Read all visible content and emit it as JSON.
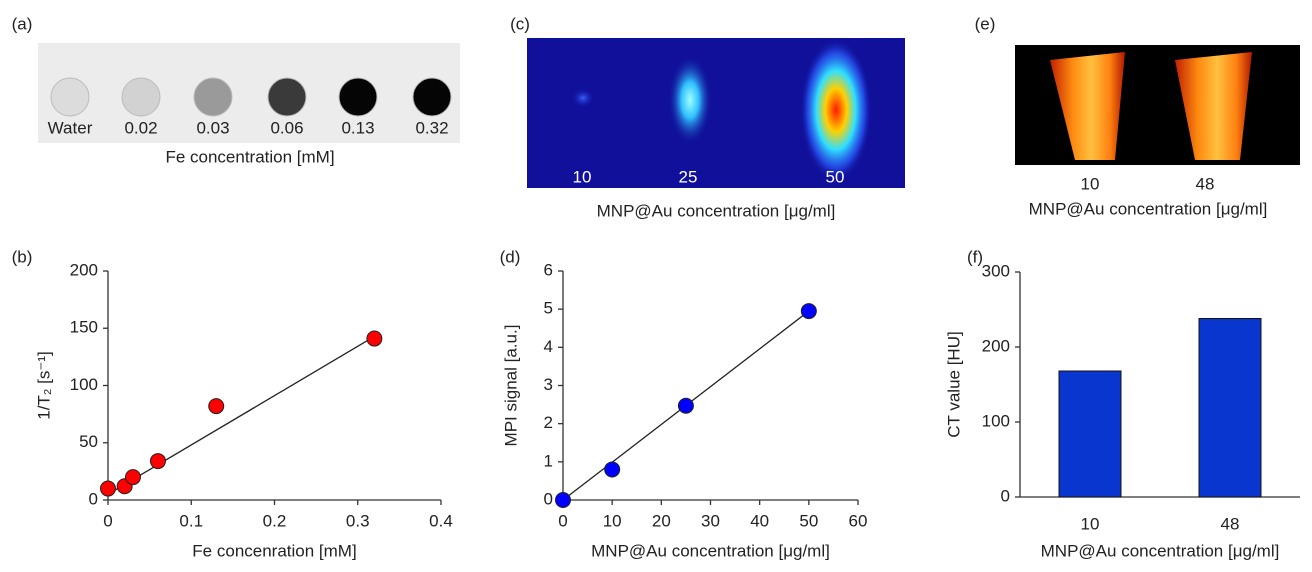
{
  "image_panels": [
    {
      "panel_label": "(a)",
      "sample_labels": [
        "Water",
        "0.02",
        "0.03",
        "0.06",
        "0.13",
        "0.32"
      ],
      "caption": "Fe concentration [mM]"
    },
    {
      "panel_label": "(c)",
      "sample_labels": [
        "10",
        "25",
        "50"
      ],
      "caption": "MNP@Au concentration [μg/ml]"
    },
    {
      "panel_label": "(e)",
      "sample_labels": [
        "10",
        "48"
      ],
      "caption": "MNP@Au concentration [μg/ml]"
    }
  ],
  "chart_data": [
    {
      "type": "scatter",
      "panel_label": "(b)",
      "xlabel": "Fe concenration [mM]",
      "ylabel": "1/T₂ [s⁻¹]",
      "x": [
        0,
        0.02,
        0.03,
        0.06,
        0.13,
        0.32
      ],
      "values": [
        10,
        12,
        20,
        34,
        82,
        141
      ],
      "color": "#ff0000",
      "trendline": {
        "x": [
          0,
          0.325
        ],
        "y": [
          5,
          145
        ]
      },
      "xlim": [
        0,
        0.4
      ],
      "xticks": [
        0,
        0.1,
        0.2,
        0.3,
        0.4
      ],
      "ylim": [
        0,
        200
      ],
      "yticks": [
        0,
        50,
        100,
        150,
        200
      ]
    },
    {
      "type": "scatter",
      "panel_label": "(d)",
      "xlabel": "MNP@Au concentration [μg/ml]",
      "ylabel": "MPI signal [a.u.]",
      "x": [
        0,
        10,
        25,
        50
      ],
      "values": [
        0,
        0.8,
        2.47,
        4.95
      ],
      "color": "#0000ff",
      "trendline": {
        "x": [
          0,
          50
        ],
        "y": [
          0,
          4.95
        ]
      },
      "xlim": [
        0,
        60
      ],
      "xticks": [
        0,
        10,
        20,
        30,
        40,
        50,
        60
      ],
      "ylim": [
        0,
        6
      ],
      "yticks": [
        0,
        1,
        2,
        3,
        4,
        5,
        6
      ]
    },
    {
      "type": "bar",
      "panel_label": "(f)",
      "xlabel": "MNP@Au concentration [μg/ml]",
      "ylabel": "CT value [HU]",
      "categories": [
        "10",
        "48"
      ],
      "values": [
        168,
        238
      ],
      "color": "#0a36d0",
      "ylim": [
        0,
        300
      ],
      "yticks": [
        0,
        100,
        200,
        300
      ]
    }
  ]
}
